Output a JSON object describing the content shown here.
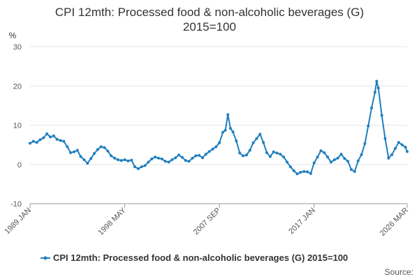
{
  "chart_data": {
    "type": "line",
    "title": "CPI 12mth: Processed food & non-alcoholic beverages (G)",
    "subtitle": "2015=100",
    "xlabel": "",
    "ylabel": "%",
    "ylim": [
      -10,
      30
    ],
    "y_ticks": [
      -10,
      0,
      10,
      20,
      30
    ],
    "x_tick_labels": [
      "1989 JAN",
      "1998 MAY",
      "2007 SEP",
      "2017 JAN",
      "2026 MAR"
    ],
    "x_range": [
      "1989 JAN",
      "2026 MAR"
    ],
    "grid": "horizontal",
    "legend_position": "bottom",
    "series": [
      {
        "name": "CPI 12mth: Processed food & non-alcoholic beverages (G) 2015=100",
        "color": "#1f7fbf",
        "points": [
          [
            "1989 JAN",
            5.4
          ],
          [
            "1989 MAY",
            5.9
          ],
          [
            "1989 SEP",
            5.6
          ],
          [
            "1990 JAN",
            6.3
          ],
          [
            "1990 MAY",
            6.8
          ],
          [
            "1990 SEP",
            7.8
          ],
          [
            "1991 JAN",
            7.0
          ],
          [
            "1991 MAY",
            7.3
          ],
          [
            "1991 SEP",
            6.4
          ],
          [
            "1992 JAN",
            6.1
          ],
          [
            "1992 MAY",
            5.9
          ],
          [
            "1992 SEP",
            4.5
          ],
          [
            "1993 JAN",
            3.0
          ],
          [
            "1993 MAY",
            3.2
          ],
          [
            "1993 SEP",
            3.6
          ],
          [
            "1994 JAN",
            2.0
          ],
          [
            "1994 MAY",
            1.2
          ],
          [
            "1994 SEP",
            0.3
          ],
          [
            "1995 JAN",
            1.5
          ],
          [
            "1995 MAY",
            2.8
          ],
          [
            "1995 SEP",
            3.8
          ],
          [
            "1996 JAN",
            4.5
          ],
          [
            "1996 MAY",
            4.3
          ],
          [
            "1996 SEP",
            3.4
          ],
          [
            "1997 JAN",
            2.2
          ],
          [
            "1997 MAY",
            1.6
          ],
          [
            "1997 SEP",
            1.2
          ],
          [
            "1998 JAN",
            1.0
          ],
          [
            "1998 MAY",
            1.2
          ],
          [
            "1998 SEP",
            0.9
          ],
          [
            "1999 JAN",
            1.1
          ],
          [
            "1999 MAY",
            -0.6
          ],
          [
            "1999 SEP",
            -1.1
          ],
          [
            "2000 JAN",
            -0.6
          ],
          [
            "2000 MAY",
            -0.3
          ],
          [
            "2000 SEP",
            0.6
          ],
          [
            "2001 JAN",
            1.4
          ],
          [
            "2001 MAY",
            1.9
          ],
          [
            "2001 SEP",
            1.6
          ],
          [
            "2002 JAN",
            1.4
          ],
          [
            "2002 MAY",
            0.8
          ],
          [
            "2002 SEP",
            0.6
          ],
          [
            "2003 JAN",
            1.2
          ],
          [
            "2003 MAY",
            1.7
          ],
          [
            "2003 SEP",
            2.4
          ],
          [
            "2004 JAN",
            1.8
          ],
          [
            "2004 MAY",
            1.0
          ],
          [
            "2004 SEP",
            0.8
          ],
          [
            "2005 JAN",
            1.6
          ],
          [
            "2005 MAY",
            2.2
          ],
          [
            "2005 SEP",
            2.3
          ],
          [
            "2006 JAN",
            1.7
          ],
          [
            "2006 MAY",
            2.6
          ],
          [
            "2006 SEP",
            3.3
          ],
          [
            "2007 JAN",
            3.9
          ],
          [
            "2007 MAY",
            4.5
          ],
          [
            "2007 SEP",
            5.5
          ],
          [
            "2008 JAN",
            8.2
          ],
          [
            "2008 APR",
            8.7
          ],
          [
            "2008 JUL",
            12.7
          ],
          [
            "2008 OCT",
            9.2
          ],
          [
            "2009 JAN",
            8.3
          ],
          [
            "2009 MAY",
            6.0
          ],
          [
            "2009 SEP",
            2.9
          ],
          [
            "2010 JAN",
            2.2
          ],
          [
            "2010 MAY",
            2.4
          ],
          [
            "2010 SEP",
            3.6
          ],
          [
            "2011 JAN",
            5.5
          ],
          [
            "2011 MAY",
            6.6
          ],
          [
            "2011 SEP",
            7.7
          ],
          [
            "2012 JAN",
            5.6
          ],
          [
            "2012 MAY",
            3.0
          ],
          [
            "2012 SEP",
            2.0
          ],
          [
            "2013 JAN",
            3.2
          ],
          [
            "2013 MAY",
            2.9
          ],
          [
            "2013 SEP",
            2.6
          ],
          [
            "2014 JAN",
            1.9
          ],
          [
            "2014 MAY",
            0.6
          ],
          [
            "2014 SEP",
            -0.6
          ],
          [
            "2015 JAN",
            -1.6
          ],
          [
            "2015 MAY",
            -2.4
          ],
          [
            "2015 SEP",
            -2.0
          ],
          [
            "2016 JAN",
            -1.8
          ],
          [
            "2016 MAY",
            -1.9
          ],
          [
            "2016 SEP",
            -2.3
          ],
          [
            "2017 JAN",
            0.4
          ],
          [
            "2017 MAY",
            1.9
          ],
          [
            "2017 SEP",
            3.5
          ],
          [
            "2018 JAN",
            3.0
          ],
          [
            "2018 MAY",
            1.9
          ],
          [
            "2018 SEP",
            0.6
          ],
          [
            "2019 JAN",
            1.2
          ],
          [
            "2019 MAY",
            1.6
          ],
          [
            "2019 SEP",
            2.6
          ],
          [
            "2020 JAN",
            1.5
          ],
          [
            "2020 MAY",
            0.8
          ],
          [
            "2020 SEP",
            -1.3
          ],
          [
            "2021 JAN",
            -1.8
          ],
          [
            "2021 MAY",
            0.9
          ],
          [
            "2021 SEP",
            2.5
          ],
          [
            "2022 JAN",
            5.3
          ],
          [
            "2022 MAY",
            9.8
          ],
          [
            "2022 SEP",
            14.4
          ],
          [
            "2023 JAN",
            18.4
          ],
          [
            "2023 MAR",
            21.2
          ],
          [
            "2023 MAY",
            19.5
          ],
          [
            "2023 SEP",
            12.5
          ],
          [
            "2024 JAN",
            6.6
          ],
          [
            "2024 MAY",
            1.6
          ],
          [
            "2024 SEP",
            2.5
          ],
          [
            "2025 JAN",
            4.1
          ],
          [
            "2025 MAY",
            5.6
          ],
          [
            "2025 SEP",
            5.0
          ],
          [
            "2026 JAN",
            4.4
          ],
          [
            "2026 MAR",
            3.3
          ]
        ]
      }
    ],
    "source_label": "Source:"
  }
}
